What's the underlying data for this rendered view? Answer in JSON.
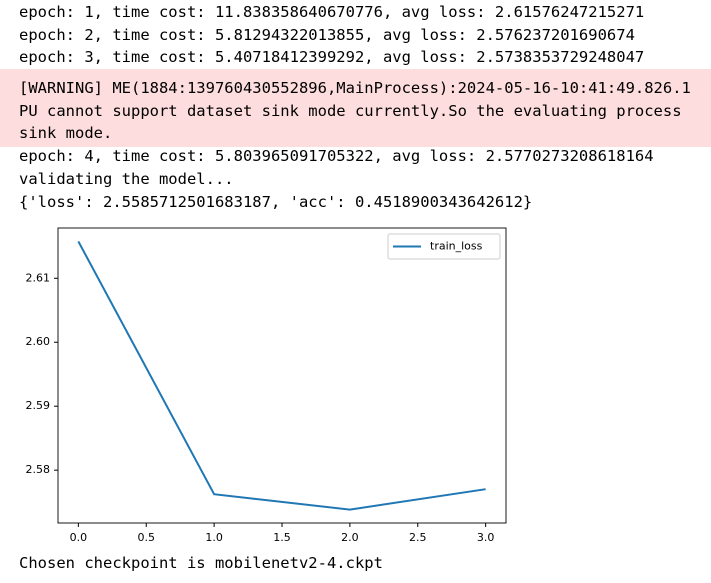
{
  "log_lines": [
    "epoch: 1, time cost: 11.838358640670776, avg loss: 2.61576247215271",
    "epoch: 2, time cost: 5.81294322013855, avg loss: 2.576237201690674",
    "epoch: 3, time cost: 5.40718412399292, avg loss: 2.5738353729248047"
  ],
  "warning": [
    "[WARNING] ME(1884:139760430552896,MainProcess):2024-05-16-10:41:49.826.1",
    "PU cannot support dataset sink mode currently.So the evaluating process",
    "sink mode."
  ],
  "log_lines_after": [
    "epoch: 4, time cost: 5.803965091705322, avg loss: 2.5770273208618164",
    "validating the model...",
    "{'loss': 2.5585712501683187, 'acc': 0.4518900343642612}"
  ],
  "chart_data": {
    "type": "line",
    "x": [
      0,
      1,
      2,
      3
    ],
    "series": [
      {
        "name": "train_loss",
        "color": "#1f77b4",
        "values": [
          2.61576247215271,
          2.576237201690674,
          2.5738353729248047,
          2.5770273208618164
        ]
      }
    ],
    "xlim": [
      -0.15,
      3.15
    ],
    "xticks": [
      {
        "value": 0,
        "label": "0.0"
      },
      0.5,
      {
        "value": 1,
        "label": "1.0"
      },
      1.5,
      {
        "value": 2,
        "label": "2.0"
      },
      2.5,
      {
        "value": 3,
        "label": "3.0"
      }
    ],
    "ylim": [
      2.57174,
      2.61786
    ],
    "yticks": [
      2.58,
      2.59,
      {
        "value": 2.6,
        "label": "2.60"
      },
      2.61
    ],
    "legend": "upper right",
    "grid": false
  },
  "footer": "Chosen checkpoint is mobilenetv2-4.ckpt"
}
